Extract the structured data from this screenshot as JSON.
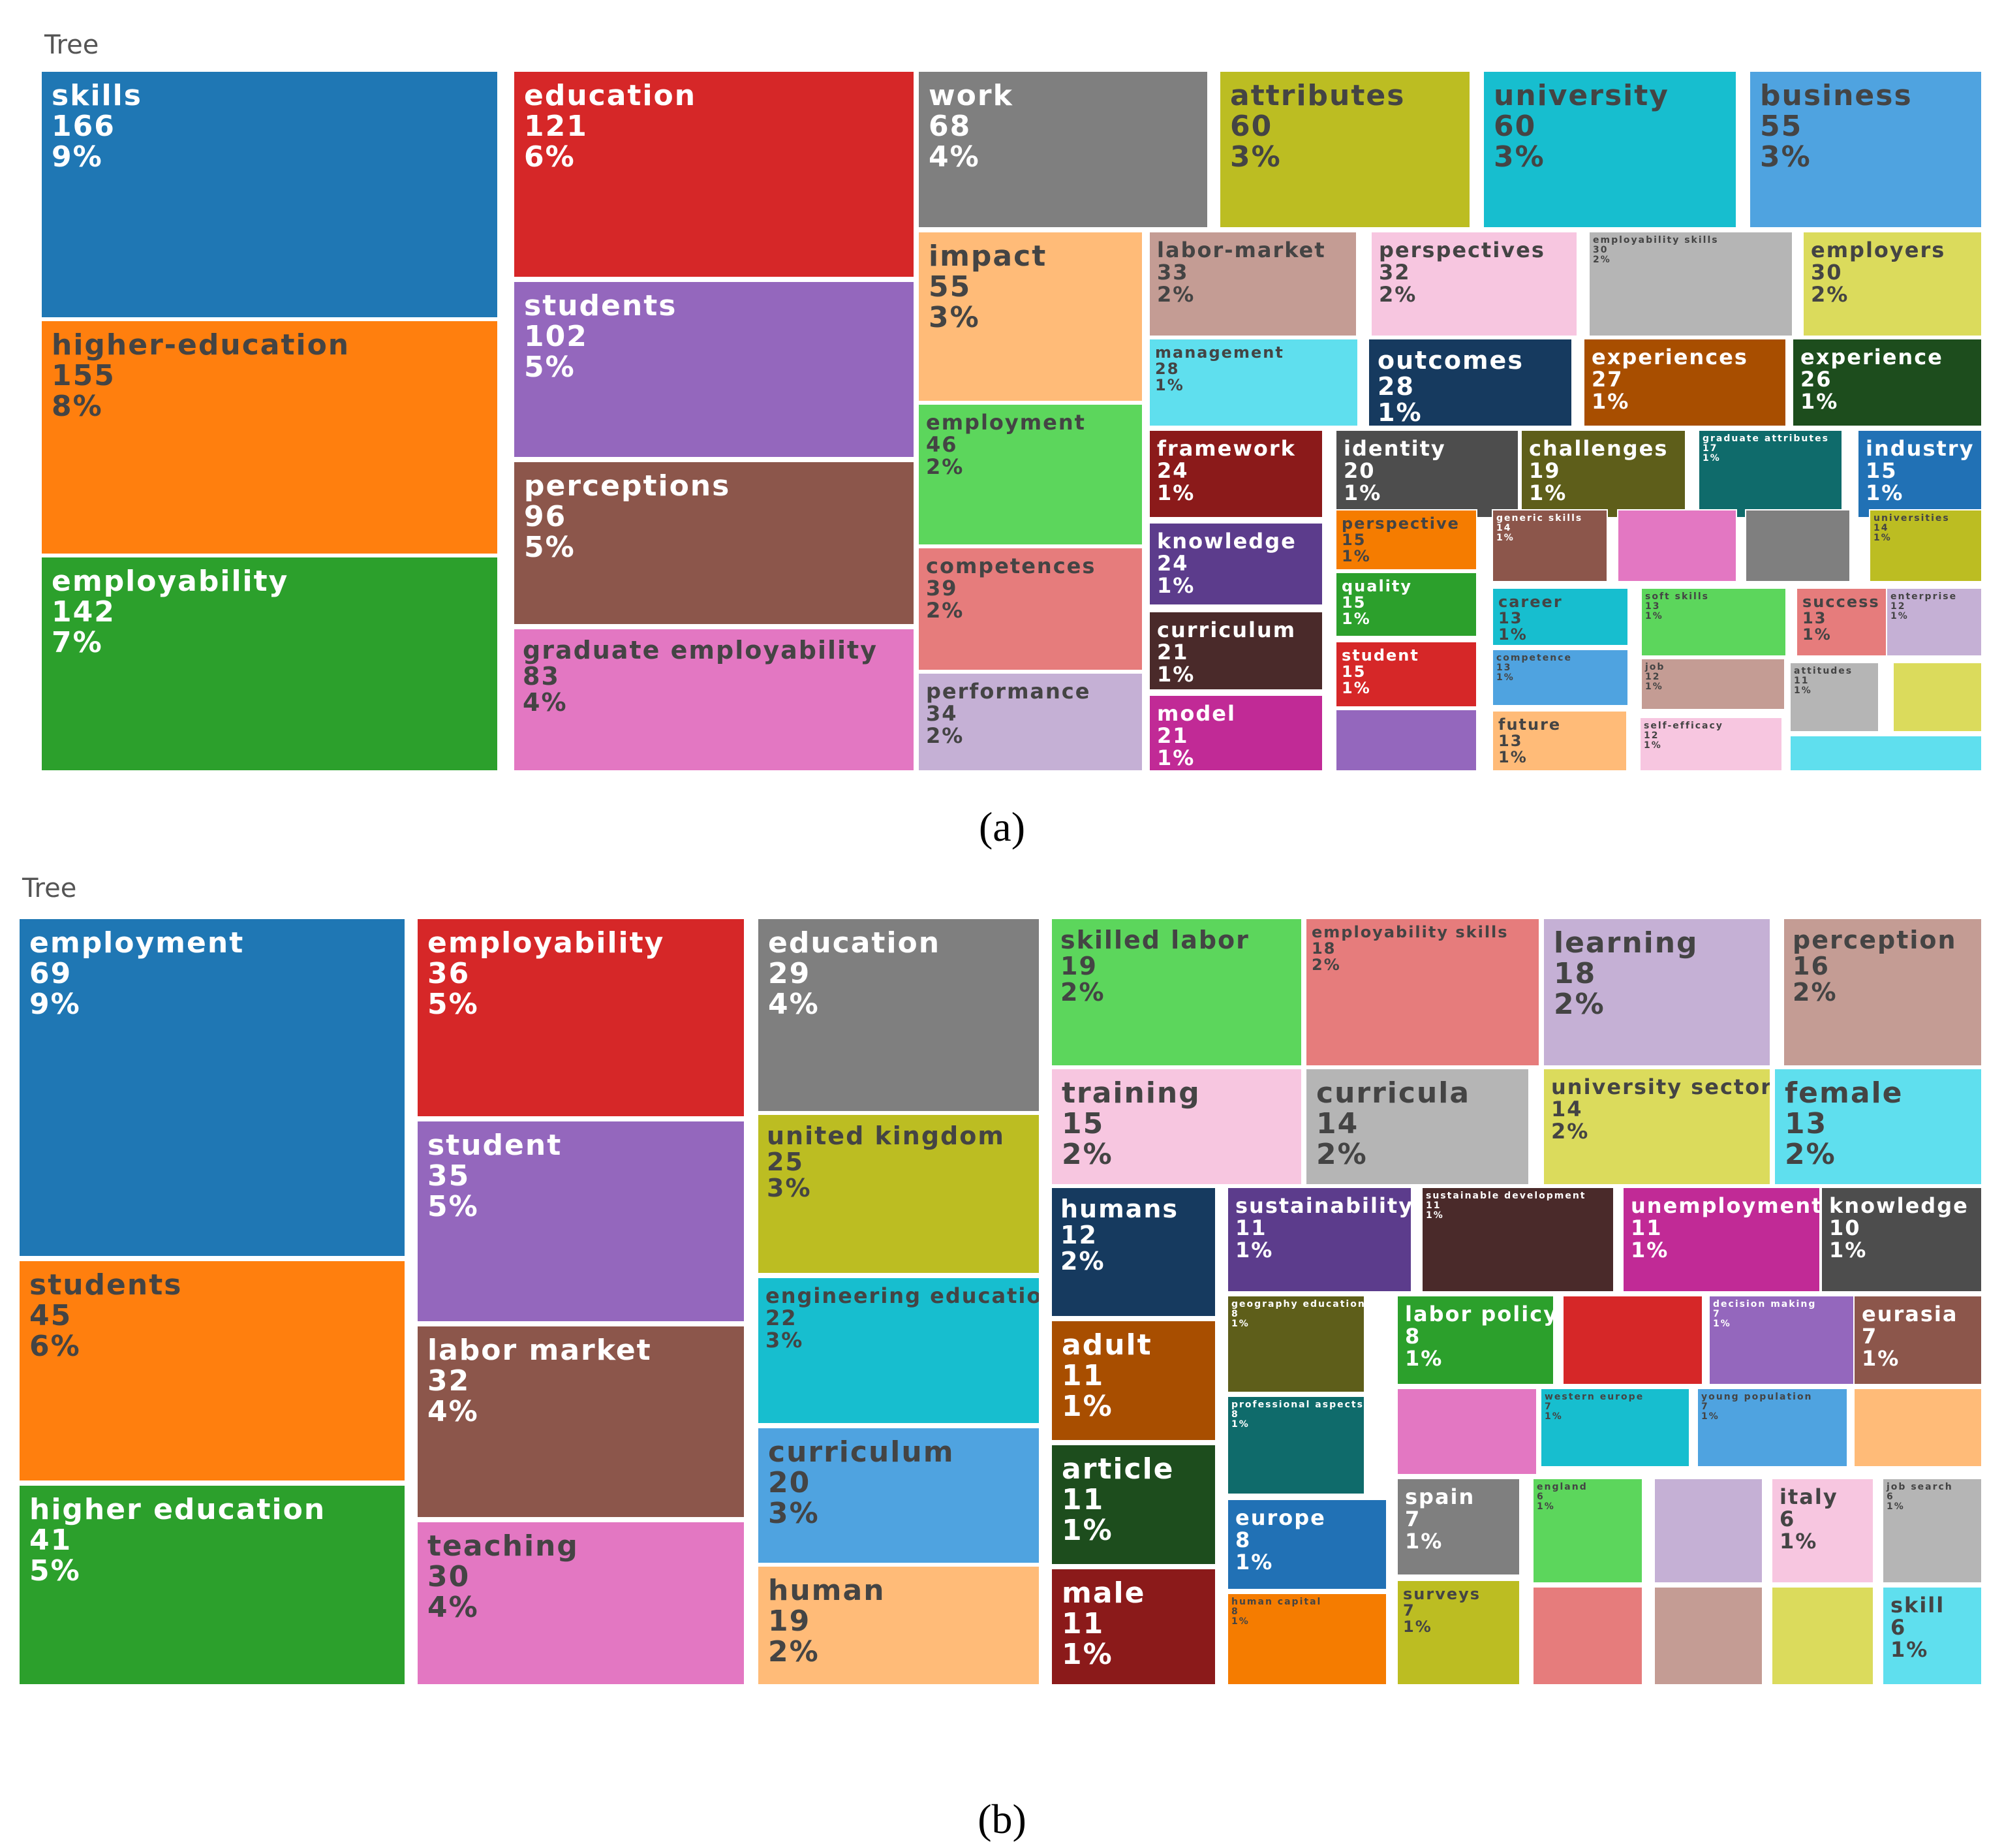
{
  "panel_labels": {
    "a": "(a)",
    "b": "(b)",
    "a_letter": "a",
    "b_letter": "b"
  },
  "chart_data": [
    {
      "type": "treemap",
      "title": "Tree",
      "items": [
        {
          "label": "skills",
          "value": 166,
          "pct": "9%",
          "color": "#1f77b4",
          "text": "light",
          "size": "xl"
        },
        {
          "label": "higher-education",
          "value": 155,
          "pct": "8%",
          "color": "#ff7f0e",
          "text": "dark",
          "size": "xl"
        },
        {
          "label": "employability",
          "value": 142,
          "pct": "7%",
          "color": "#2ca02c",
          "text": "light",
          "size": "xl"
        },
        {
          "label": "education",
          "value": 121,
          "pct": "6%",
          "color": "#d62728",
          "text": "light",
          "size": "xl"
        },
        {
          "label": "students",
          "value": 102,
          "pct": "5%",
          "color": "#9467bd",
          "text": "light",
          "size": "xl"
        },
        {
          "label": "perceptions",
          "value": 96,
          "pct": "5%",
          "color": "#8c564b",
          "text": "light",
          "size": "xl"
        },
        {
          "label": "graduate employability",
          "value": 83,
          "pct": "4%",
          "color": "#e377c2",
          "text": "dark",
          "size": "l"
        },
        {
          "label": "work",
          "value": 68,
          "pct": "4%",
          "color": "#7f7f7f",
          "text": "light",
          "size": "xl"
        },
        {
          "label": "attributes",
          "value": 60,
          "pct": "3%",
          "color": "#bcbd22",
          "text": "dark",
          "size": "xl"
        },
        {
          "label": "university",
          "value": 60,
          "pct": "3%",
          "color": "#17becf",
          "text": "dark",
          "size": "xl"
        },
        {
          "label": "business",
          "value": 55,
          "pct": "3%",
          "color": "#4fa3e0",
          "text": "dark",
          "size": "xl"
        },
        {
          "label": "impact",
          "value": 55,
          "pct": "3%",
          "color": "#ffbb78",
          "text": "dark",
          "size": "xl"
        },
        {
          "label": "employment",
          "value": 46,
          "pct": "2%",
          "color": "#5cd65c",
          "text": "dark",
          "size": "m"
        },
        {
          "label": "competences",
          "value": 39,
          "pct": "2%",
          "color": "#e67c7c",
          "text": "dark",
          "size": "m"
        },
        {
          "label": "performance",
          "value": 34,
          "pct": "2%",
          "color": "#c5b0d5",
          "text": "dark",
          "size": "m"
        },
        {
          "label": "labor-market",
          "value": 33,
          "pct": "2%",
          "color": "#c49c94",
          "text": "dark",
          "size": "m"
        },
        {
          "label": "perspectives",
          "value": 32,
          "pct": "2%",
          "color": "#f7c6e0",
          "text": "dark",
          "size": "m"
        },
        {
          "label": "employability skills",
          "value": 30,
          "pct": "2%",
          "color": "#b5b5b5",
          "text": "dark",
          "size": "xs"
        },
        {
          "label": "employers",
          "value": 30,
          "pct": "2%",
          "color": "#dbdb5c",
          "text": "dark",
          "size": "m"
        },
        {
          "label": "management",
          "value": 28,
          "pct": "1%",
          "color": "#5fdfee",
          "text": "dark",
          "size": "s"
        },
        {
          "label": "outcomes",
          "value": 28,
          "pct": "1%",
          "color": "#163a5f",
          "text": "light",
          "size": "l"
        },
        {
          "label": "experiences",
          "value": 27,
          "pct": "1%",
          "color": "#a84e00",
          "text": "light",
          "size": "m"
        },
        {
          "label": "experience",
          "value": 26,
          "pct": "1%",
          "color": "#1d4d1d",
          "text": "light",
          "size": "m"
        },
        {
          "label": "framework",
          "value": 24,
          "pct": "1%",
          "color": "#8b1a1a",
          "text": "light",
          "size": "m"
        },
        {
          "label": "identity",
          "value": 20,
          "pct": "1%",
          "color": "#4d4d4d",
          "text": "light",
          "size": "m"
        },
        {
          "label": "challenges",
          "value": 19,
          "pct": "1%",
          "color": "#5e5e1a",
          "text": "light",
          "size": "m"
        },
        {
          "label": "graduate attributes",
          "value": 17,
          "pct": "1%",
          "color": "#0f6b6b",
          "text": "light",
          "size": "xs"
        },
        {
          "label": "industry",
          "value": 15,
          "pct": "1%",
          "color": "#2171b5",
          "text": "light",
          "size": "m"
        },
        {
          "label": "knowledge",
          "value": 24,
          "pct": "1%",
          "color": "#5c3c8c",
          "text": "light",
          "size": "m"
        },
        {
          "label": "perspective",
          "value": 15,
          "pct": "1%",
          "color": "#f57c00",
          "text": "dark",
          "size": "s"
        },
        {
          "label": "generic skills",
          "value": 14,
          "pct": "1%",
          "color": "#8c564b",
          "text": "light",
          "size": "xs"
        },
        {
          "label": "",
          "value": null,
          "pct": "",
          "color": "#e377c2",
          "text": "light",
          "size": "xs"
        },
        {
          "label": "",
          "value": null,
          "pct": "",
          "color": "#7f7f7f",
          "text": "light",
          "size": "xs"
        },
        {
          "label": "universities",
          "value": 14,
          "pct": "1%",
          "color": "#bcbd22",
          "text": "dark",
          "size": "xs"
        },
        {
          "label": "curriculum",
          "value": 21,
          "pct": "1%",
          "color": "#4a2a2a",
          "text": "light",
          "size": "m"
        },
        {
          "label": "quality",
          "value": 15,
          "pct": "1%",
          "color": "#2ca02c",
          "text": "light",
          "size": "s"
        },
        {
          "label": "career",
          "value": 13,
          "pct": "1%",
          "color": "#17becf",
          "text": "dark",
          "size": "s"
        },
        {
          "label": "soft skills",
          "value": 13,
          "pct": "1%",
          "color": "#5cd65c",
          "text": "dark",
          "size": "xs"
        },
        {
          "label": "success",
          "value": 13,
          "pct": "1%",
          "color": "#e67c7c",
          "text": "dark",
          "size": "s"
        },
        {
          "label": "enterprise",
          "value": 12,
          "pct": "1%",
          "color": "#c5b0d5",
          "text": "dark",
          "size": "xs"
        },
        {
          "label": "student",
          "value": 15,
          "pct": "1%",
          "color": "#d62728",
          "text": "light",
          "size": "s"
        },
        {
          "label": "competence",
          "value": 13,
          "pct": "1%",
          "color": "#4fa3e0",
          "text": "dark",
          "size": "xs"
        },
        {
          "label": "job",
          "value": 12,
          "pct": "1%",
          "color": "#c49c94",
          "text": "dark",
          "size": "xs"
        },
        {
          "label": "attitudes",
          "value": 11,
          "pct": "1%",
          "color": "#b5b5b5",
          "text": "dark",
          "size": "xs"
        },
        {
          "label": "",
          "value": null,
          "pct": "",
          "color": "#dbdb5c",
          "text": "dark",
          "size": "xs"
        },
        {
          "label": "model",
          "value": 21,
          "pct": "1%",
          "color": "#c12a96",
          "text": "light",
          "size": "m"
        },
        {
          "label": "",
          "value": null,
          "pct": "",
          "color": "#9467bd",
          "text": "light",
          "size": "xs"
        },
        {
          "label": "future",
          "value": 13,
          "pct": "1%",
          "color": "#ffbb78",
          "text": "dark",
          "size": "s"
        },
        {
          "label": "self-efficacy",
          "value": 12,
          "pct": "1%",
          "color": "#f7c6e0",
          "text": "dark",
          "size": "xs"
        },
        {
          "label": "",
          "value": null,
          "pct": "",
          "color": "#5fdfee",
          "text": "dark",
          "size": "xs"
        }
      ]
    },
    {
      "type": "treemap",
      "title": "Tree",
      "items": [
        {
          "label": "employment",
          "value": 69,
          "pct": "9%",
          "color": "#1f77b4",
          "text": "light",
          "size": "xl"
        },
        {
          "label": "students",
          "value": 45,
          "pct": "6%",
          "color": "#ff7f0e",
          "text": "dark",
          "size": "xl"
        },
        {
          "label": "higher education",
          "value": 41,
          "pct": "5%",
          "color": "#2ca02c",
          "text": "light",
          "size": "xl"
        },
        {
          "label": "employability",
          "value": 36,
          "pct": "5%",
          "color": "#d62728",
          "text": "light",
          "size": "xl"
        },
        {
          "label": "student",
          "value": 35,
          "pct": "5%",
          "color": "#9467bd",
          "text": "light",
          "size": "xl"
        },
        {
          "label": "labor market",
          "value": 32,
          "pct": "4%",
          "color": "#8c564b",
          "text": "light",
          "size": "xl"
        },
        {
          "label": "teaching",
          "value": 30,
          "pct": "4%",
          "color": "#e377c2",
          "text": "dark",
          "size": "xl"
        },
        {
          "label": "education",
          "value": 29,
          "pct": "4%",
          "color": "#7f7f7f",
          "text": "light",
          "size": "xl"
        },
        {
          "label": "united kingdom",
          "value": 25,
          "pct": "3%",
          "color": "#bcbd22",
          "text": "dark",
          "size": "l"
        },
        {
          "label": "engineering education",
          "value": 22,
          "pct": "3%",
          "color": "#17becf",
          "text": "dark",
          "size": "m"
        },
        {
          "label": "curriculum",
          "value": 20,
          "pct": "3%",
          "color": "#4fa3e0",
          "text": "dark",
          "size": "xl"
        },
        {
          "label": "human",
          "value": 19,
          "pct": "2%",
          "color": "#ffbb78",
          "text": "dark",
          "size": "xl"
        },
        {
          "label": "skilled labor",
          "value": 19,
          "pct": "2%",
          "color": "#5cd65c",
          "text": "dark",
          "size": "l"
        },
        {
          "label": "employability skills",
          "value": 18,
          "pct": "2%",
          "color": "#e67c7c",
          "text": "dark",
          "size": "s"
        },
        {
          "label": "learning",
          "value": 18,
          "pct": "2%",
          "color": "#c5b0d5",
          "text": "dark",
          "size": "xl"
        },
        {
          "label": "perception",
          "value": 16,
          "pct": "2%",
          "color": "#c49c94",
          "text": "dark",
          "size": "l"
        },
        {
          "label": "training",
          "value": 15,
          "pct": "2%",
          "color": "#f7c6e0",
          "text": "dark",
          "size": "xl"
        },
        {
          "label": "curricula",
          "value": 14,
          "pct": "2%",
          "color": "#b5b5b5",
          "text": "dark",
          "size": "xl"
        },
        {
          "label": "university sector",
          "value": 14,
          "pct": "2%",
          "color": "#dbdb5c",
          "text": "dark",
          "size": "m"
        },
        {
          "label": "female",
          "value": 13,
          "pct": "2%",
          "color": "#5fdfee",
          "text": "dark",
          "size": "xl"
        },
        {
          "label": "humans",
          "value": 12,
          "pct": "2%",
          "color": "#163a5f",
          "text": "light",
          "size": "l"
        },
        {
          "label": "sustainability",
          "value": 11,
          "pct": "1%",
          "color": "#5c3c8c",
          "text": "light",
          "size": "m"
        },
        {
          "label": "sustainable development",
          "value": 11,
          "pct": "1%",
          "color": "#4a2a2a",
          "text": "light",
          "size": "xs"
        },
        {
          "label": "unemployment",
          "value": 11,
          "pct": "1%",
          "color": "#c12a96",
          "text": "light",
          "size": "m"
        },
        {
          "label": "knowledge",
          "value": 10,
          "pct": "1%",
          "color": "#4d4d4d",
          "text": "light",
          "size": "m"
        },
        {
          "label": "adult",
          "value": 11,
          "pct": "1%",
          "color": "#a84e00",
          "text": "light",
          "size": "xl"
        },
        {
          "label": "geography education",
          "value": 8,
          "pct": "1%",
          "color": "#5e5e1a",
          "text": "light",
          "size": "xs"
        },
        {
          "label": "labor policy",
          "value": 8,
          "pct": "1%",
          "color": "#2ca02c",
          "text": "light",
          "size": "m"
        },
        {
          "label": "",
          "value": null,
          "pct": "",
          "color": "#d62728",
          "text": "light",
          "size": "xs"
        },
        {
          "label": "decision making",
          "value": 7,
          "pct": "1%",
          "color": "#9467bd",
          "text": "light",
          "size": "xs"
        },
        {
          "label": "eurasia",
          "value": 7,
          "pct": "1%",
          "color": "#8c564b",
          "text": "light",
          "size": "m"
        },
        {
          "label": "article",
          "value": 11,
          "pct": "1%",
          "color": "#1d4d1d",
          "text": "light",
          "size": "xl"
        },
        {
          "label": "professional aspects",
          "value": 8,
          "pct": "1%",
          "color": "#0f6b6b",
          "text": "light",
          "size": "xs"
        },
        {
          "label": "",
          "value": null,
          "pct": "",
          "color": "#e377c2",
          "text": "dark",
          "size": "xs"
        },
        {
          "label": "western europe",
          "value": 7,
          "pct": "1%",
          "color": "#17becf",
          "text": "dark",
          "size": "xs"
        },
        {
          "label": "young population",
          "value": 7,
          "pct": "1%",
          "color": "#4fa3e0",
          "text": "dark",
          "size": "xs"
        },
        {
          "label": "",
          "value": null,
          "pct": "",
          "color": "#ffbb78",
          "text": "dark",
          "size": "xs"
        },
        {
          "label": "europe",
          "value": 8,
          "pct": "1%",
          "color": "#2171b5",
          "text": "light",
          "size": "m"
        },
        {
          "label": "spain",
          "value": 7,
          "pct": "1%",
          "color": "#7f7f7f",
          "text": "light",
          "size": "m"
        },
        {
          "label": "england",
          "value": 6,
          "pct": "1%",
          "color": "#5cd65c",
          "text": "dark",
          "size": "xs"
        },
        {
          "label": "",
          "value": null,
          "pct": "",
          "color": "#c5b0d5",
          "text": "dark",
          "size": "xs"
        },
        {
          "label": "italy",
          "value": 6,
          "pct": "1%",
          "color": "#f7c6e0",
          "text": "dark",
          "size": "m"
        },
        {
          "label": "job search",
          "value": 6,
          "pct": "1%",
          "color": "#b5b5b5",
          "text": "dark",
          "size": "xs"
        },
        {
          "label": "male",
          "value": 11,
          "pct": "1%",
          "color": "#8b1a1a",
          "text": "light",
          "size": "xl"
        },
        {
          "label": "human capital",
          "value": 8,
          "pct": "1%",
          "color": "#f57c00",
          "text": "dark",
          "size": "xs"
        },
        {
          "label": "surveys",
          "value": 7,
          "pct": "1%",
          "color": "#bcbd22",
          "text": "dark",
          "size": "s"
        },
        {
          "label": "",
          "value": null,
          "pct": "",
          "color": "#e67c7c",
          "text": "dark",
          "size": "xs"
        },
        {
          "label": "",
          "value": null,
          "pct": "",
          "color": "#c49c94",
          "text": "dark",
          "size": "xs"
        },
        {
          "label": "",
          "value": null,
          "pct": "",
          "color": "#dbdb5c",
          "text": "dark",
          "size": "xs"
        },
        {
          "label": "skill",
          "value": 6,
          "pct": "1%",
          "color": "#5fdfee",
          "text": "dark",
          "size": "m"
        }
      ]
    }
  ]
}
